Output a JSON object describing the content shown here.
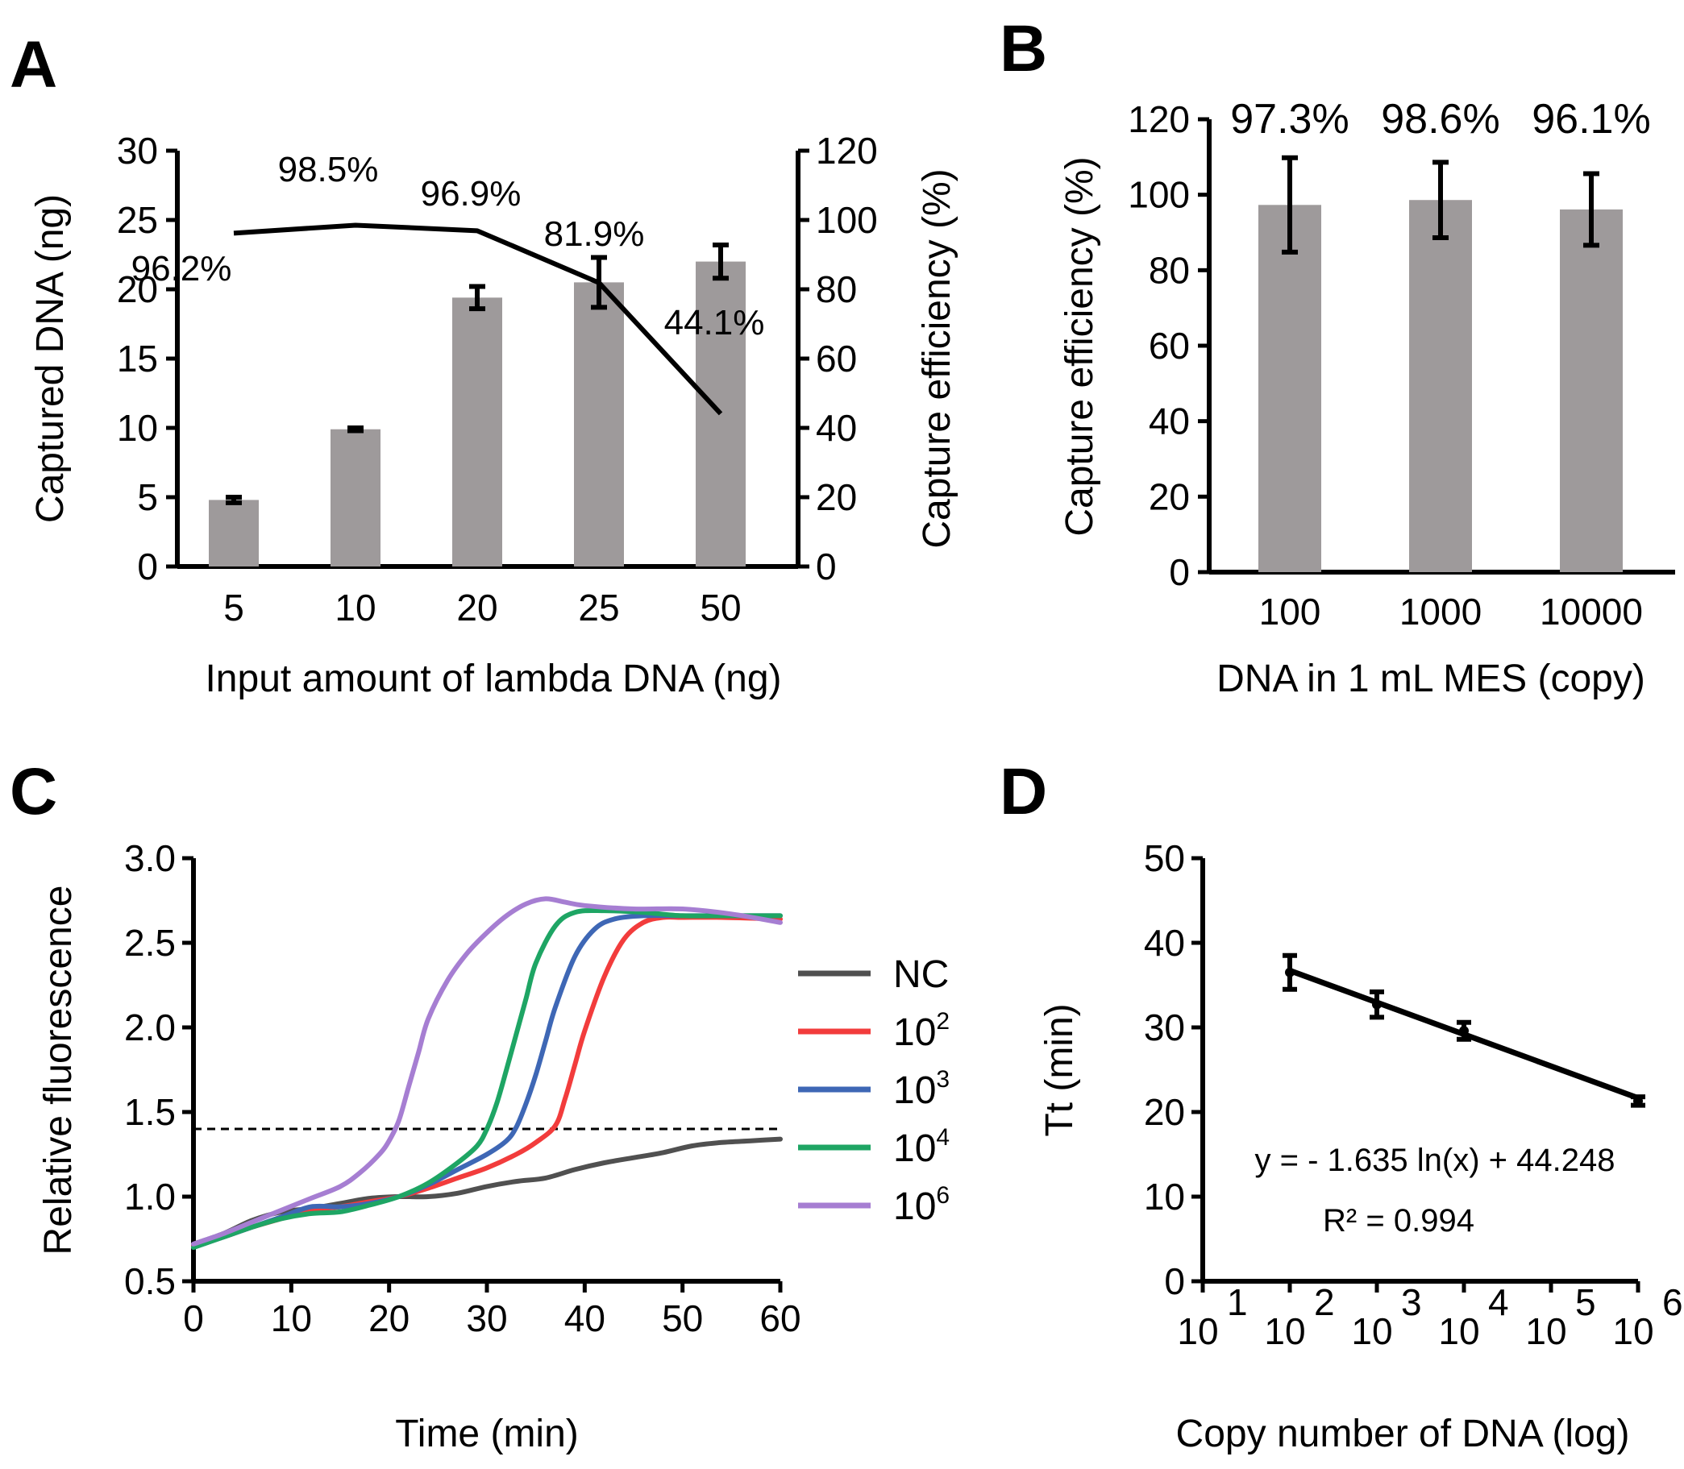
{
  "panels": {
    "A": {
      "letter": "A"
    },
    "B": {
      "letter": "B"
    },
    "C": {
      "letter": "C"
    },
    "D": {
      "letter": "D"
    }
  },
  "chart_data": [
    {
      "panel": "A",
      "type": "bar",
      "categories": [
        "5",
        "10",
        "20",
        "25",
        "50"
      ],
      "xlabel": "Input amount of lambda DNA (ng)",
      "ylabel": "Captured DNA (ng)",
      "ylim": [
        0,
        30
      ],
      "yticks": [
        "0",
        "5",
        "10",
        "15",
        "20",
        "25",
        "30"
      ],
      "bar_color": "#9e9a9b",
      "series": [
        {
          "name": "Captured DNA",
          "values": [
            4.8,
            9.9,
            19.4,
            20.5,
            22.0
          ],
          "errors": [
            0.2,
            0.1,
            0.8,
            1.8,
            1.2
          ]
        }
      ],
      "secondary": {
        "type": "line",
        "name": "Capture efficiency",
        "ylabel": "Capture efficiency (%)",
        "ylim": [
          0,
          120
        ],
        "yticks": [
          "0",
          "20",
          "40",
          "60",
          "80",
          "100",
          "120"
        ],
        "values": [
          96.2,
          98.5,
          96.9,
          81.9,
          44.1
        ],
        "labels": [
          "96.2%",
          "98.5%",
          "96.9%",
          "81.9%",
          "44.1%"
        ]
      }
    },
    {
      "panel": "B",
      "type": "bar",
      "categories": [
        "100",
        "1000",
        "10000"
      ],
      "xlabel": "DNA in 1 mL MES (copy)",
      "ylabel": "Capture efficiency (%)",
      "ylim": [
        0,
        120
      ],
      "yticks": [
        "0",
        "20",
        "40",
        "60",
        "80",
        "100",
        "120"
      ],
      "bar_color": "#9e9a9b",
      "series": [
        {
          "name": "Capture efficiency",
          "values": [
            97.3,
            98.6,
            96.1
          ],
          "errors": [
            12.5,
            10.0,
            9.5
          ]
        }
      ],
      "labels": [
        "97.3%",
        "98.6%",
        "96.1%"
      ]
    },
    {
      "panel": "C",
      "type": "line",
      "xlabel": "Time (min)",
      "ylabel": "Relative fluorescence",
      "xlim": [
        0,
        60
      ],
      "ylim": [
        0.5,
        3.0
      ],
      "xticks": [
        "0",
        "10",
        "20",
        "30",
        "40",
        "50",
        "60"
      ],
      "yticks": [
        "0.5",
        "1.0",
        "1.5",
        "2.0",
        "2.5",
        "3.0"
      ],
      "threshold": 1.4,
      "series": [
        {
          "name": "NC",
          "exp": "",
          "color": "#505050",
          "x": [
            0,
            3,
            6,
            9,
            12,
            15,
            18,
            21,
            24,
            27,
            30,
            33,
            36,
            39,
            42,
            45,
            48,
            51,
            54,
            57,
            60
          ],
          "y": [
            0.72,
            0.78,
            0.86,
            0.91,
            0.93,
            0.96,
            0.99,
            1.0,
            1.0,
            1.02,
            1.06,
            1.09,
            1.11,
            1.16,
            1.2,
            1.23,
            1.26,
            1.3,
            1.32,
            1.33,
            1.34
          ]
        },
        {
          "name": "10",
          "exp": "2",
          "color": "#f23c3c",
          "x": [
            0,
            3,
            6,
            9,
            12,
            15,
            18,
            21,
            24,
            27,
            30,
            33,
            35,
            37,
            38,
            39,
            40,
            42,
            44,
            46,
            48,
            50,
            54,
            60
          ],
          "y": [
            0.71,
            0.76,
            0.82,
            0.87,
            0.92,
            0.94,
            0.97,
            1.0,
            1.05,
            1.11,
            1.17,
            1.25,
            1.32,
            1.42,
            1.58,
            1.78,
            1.98,
            2.3,
            2.52,
            2.62,
            2.65,
            2.65,
            2.65,
            2.64
          ]
        },
        {
          "name": "10",
          "exp": "3",
          "color": "#3e67b5",
          "x": [
            0,
            3,
            6,
            9,
            12,
            15,
            18,
            21,
            24,
            27,
            30,
            32,
            33,
            34,
            35,
            36,
            37,
            39,
            41,
            43,
            46,
            50,
            55,
            60
          ],
          "y": [
            0.7,
            0.76,
            0.82,
            0.88,
            0.94,
            0.94,
            0.96,
            1.0,
            1.07,
            1.16,
            1.25,
            1.33,
            1.41,
            1.55,
            1.72,
            1.92,
            2.12,
            2.42,
            2.58,
            2.64,
            2.66,
            2.66,
            2.66,
            2.66
          ]
        },
        {
          "name": "10",
          "exp": "4",
          "color": "#1ea564",
          "x": [
            0,
            3,
            6,
            9,
            12,
            15,
            18,
            21,
            24,
            27,
            29,
            30,
            31,
            32,
            33,
            34,
            35,
            37,
            39,
            42,
            46,
            50,
            55,
            60
          ],
          "y": [
            0.7,
            0.76,
            0.82,
            0.87,
            0.9,
            0.91,
            0.95,
            1.0,
            1.08,
            1.2,
            1.3,
            1.4,
            1.55,
            1.75,
            1.96,
            2.17,
            2.38,
            2.6,
            2.68,
            2.69,
            2.68,
            2.66,
            2.66,
            2.66
          ]
        },
        {
          "name": "10",
          "exp": "6",
          "color": "#a67ed2",
          "x": [
            0,
            3,
            6,
            9,
            12,
            15,
            17,
            19,
            20,
            21,
            22,
            23,
            24,
            26,
            28,
            30,
            32,
            34,
            36,
            38,
            40,
            45,
            50,
            55,
            60
          ],
          "y": [
            0.72,
            0.78,
            0.85,
            0.92,
            0.99,
            1.06,
            1.14,
            1.25,
            1.33,
            1.45,
            1.65,
            1.85,
            2.05,
            2.28,
            2.44,
            2.56,
            2.66,
            2.73,
            2.76,
            2.74,
            2.72,
            2.7,
            2.7,
            2.67,
            2.62
          ]
        }
      ]
    },
    {
      "panel": "D",
      "type": "scatter",
      "xlabel": "Copy number of DNA (log)",
      "ylabel": "Tt (min)",
      "xscale": "log",
      "xlim_exp": [
        1,
        6
      ],
      "ylim": [
        0,
        50
      ],
      "xtick_base": "10",
      "xtick_exps": [
        "1",
        "2",
        "3",
        "4",
        "5",
        "6"
      ],
      "yticks": [
        "0",
        "10",
        "20",
        "30",
        "40",
        "50"
      ],
      "points": [
        {
          "x": 100,
          "y": 36.5,
          "err": 2.0
        },
        {
          "x": 1000,
          "y": 32.7,
          "err": 1.5
        },
        {
          "x": 10000,
          "y": 29.6,
          "err": 1.0
        },
        {
          "x": 1000000,
          "y": 21.3,
          "err": 0.5
        }
      ],
      "fit": {
        "slope": -1.635,
        "intercept": 44.248
      },
      "equation": "y = - 1.635 ln(x) + 44.248",
      "r2": "R² = 0.994"
    }
  ]
}
